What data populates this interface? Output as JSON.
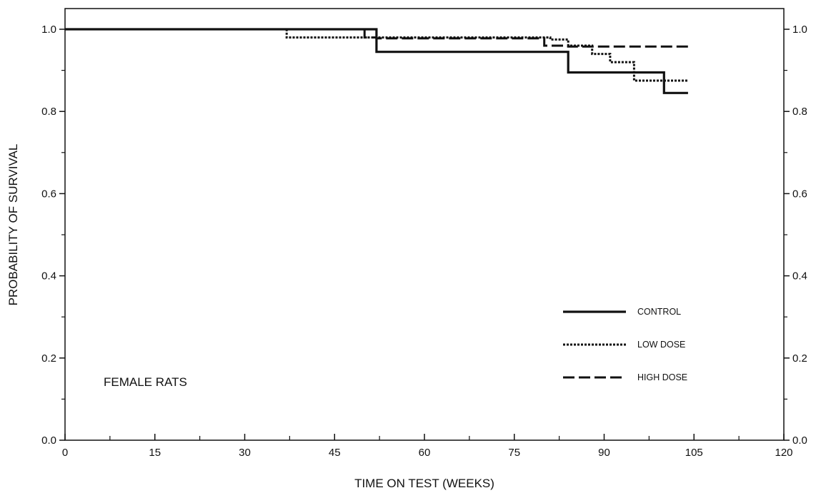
{
  "chart_data": {
    "type": "line",
    "step": true,
    "xlabel": "TIME ON TEST (WEEKS)",
    "ylabel": "PROBABILITY OF SURVIVAL",
    "xlim": [
      0,
      120
    ],
    "ylim": [
      0.0,
      1.0
    ],
    "xticks": [
      "0",
      "15",
      "30",
      "45",
      "60",
      "75",
      "90",
      "105",
      "120"
    ],
    "yticks": [
      "0.0",
      "0.2",
      "0.4",
      "0.6",
      "0.8",
      "1.0"
    ],
    "right_yticks": [
      "0.0",
      "0.2",
      "0.4",
      "0.6",
      "0.8",
      "1.0"
    ],
    "annotation": "FEMALE RATS",
    "grid": false,
    "legend_position": "lower-right",
    "series": [
      {
        "name": "CONTROL",
        "style": "solid",
        "color": "#111111",
        "x": [
          0,
          52,
          84,
          100,
          104
        ],
        "y": [
          1.0,
          0.945,
          0.895,
          0.845,
          0.845
        ]
      },
      {
        "name": "LOW DOSE",
        "style": "dotted",
        "color": "#111111",
        "x": [
          0,
          37,
          52,
          81,
          84,
          88,
          91,
          95,
          104
        ],
        "y": [
          1.0,
          0.98,
          0.98,
          0.975,
          0.96,
          0.94,
          0.92,
          0.875,
          0.875
        ]
      },
      {
        "name": "HIGH DOSE",
        "style": "dashed",
        "color": "#111111",
        "x": [
          0,
          50,
          52,
          80,
          84,
          104
        ],
        "y": [
          1.0,
          0.98,
          0.978,
          0.96,
          0.958,
          0.958
        ]
      }
    ]
  }
}
